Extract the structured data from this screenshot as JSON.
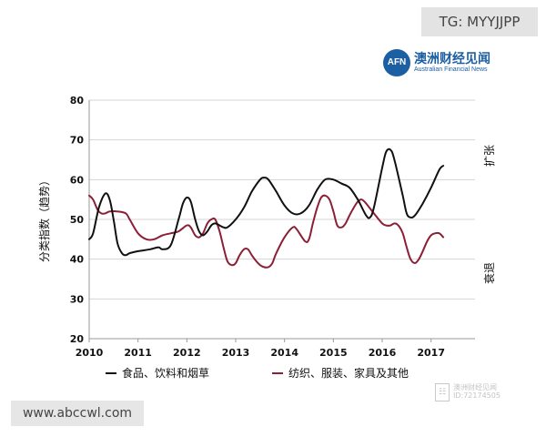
{
  "watermarks": {
    "tg_handle": "TG: MYYJJPP",
    "site_url": "www.abccwl.com",
    "corner_brand_cn": "澳洲财经见闻",
    "corner_brand_id": "ID:72174505"
  },
  "brand": {
    "logo_text": "AFN",
    "name_cn": "澳洲财经见闻",
    "name_en": "Australian Financial News",
    "color": "#1d5fa3"
  },
  "chart_data": {
    "type": "line",
    "title": "",
    "ylabel": "分类指数（趋势）",
    "xlabel": "",
    "ylim": [
      20,
      80
    ],
    "yticks": [
      20,
      30,
      40,
      50,
      60,
      70,
      80
    ],
    "xlim": [
      2010,
      2017.9
    ],
    "xticks": [
      2010,
      2011,
      2012,
      2013,
      2014,
      2015,
      2016,
      2017
    ],
    "xtick_labels": [
      "2010",
      "2011",
      "2012",
      "2013",
      "2014",
      "2015",
      "2016",
      "2017"
    ],
    "reference_line": 50,
    "annotations": {
      "upper": "扩张",
      "lower": "衰退"
    },
    "legend_position": "bottom",
    "series": [
      {
        "name": "食品、饮料和烟草",
        "color": "#111111",
        "points": [
          [
            2010.0,
            45
          ],
          [
            2010.08,
            46.5
          ],
          [
            2010.2,
            53
          ],
          [
            2010.33,
            56.5
          ],
          [
            2010.42,
            55
          ],
          [
            2010.5,
            50
          ],
          [
            2010.58,
            44
          ],
          [
            2010.67,
            41.5
          ],
          [
            2010.75,
            41
          ],
          [
            2010.83,
            41.5
          ],
          [
            2011.0,
            42
          ],
          [
            2011.25,
            42.5
          ],
          [
            2011.42,
            43
          ],
          [
            2011.5,
            42.5
          ],
          [
            2011.67,
            43.5
          ],
          [
            2011.83,
            50
          ],
          [
            2011.92,
            54
          ],
          [
            2012.0,
            55.5
          ],
          [
            2012.08,
            54.5
          ],
          [
            2012.17,
            50
          ],
          [
            2012.25,
            47
          ],
          [
            2012.33,
            46
          ],
          [
            2012.42,
            47
          ],
          [
            2012.5,
            48.5
          ],
          [
            2012.58,
            49
          ],
          [
            2012.67,
            48.5
          ],
          [
            2012.75,
            48
          ],
          [
            2012.83,
            48
          ],
          [
            2013.0,
            50
          ],
          [
            2013.17,
            53
          ],
          [
            2013.33,
            57
          ],
          [
            2013.5,
            60
          ],
          [
            2013.58,
            60.5
          ],
          [
            2013.67,
            60
          ],
          [
            2013.83,
            57
          ],
          [
            2014.0,
            53.5
          ],
          [
            2014.17,
            51.5
          ],
          [
            2014.33,
            51.5
          ],
          [
            2014.5,
            53.5
          ],
          [
            2014.67,
            57.5
          ],
          [
            2014.83,
            60
          ],
          [
            2015.0,
            60
          ],
          [
            2015.17,
            59
          ],
          [
            2015.33,
            58
          ],
          [
            2015.5,
            55
          ],
          [
            2015.67,
            51
          ],
          [
            2015.75,
            50.5
          ],
          [
            2015.83,
            53
          ],
          [
            2016.0,
            63
          ],
          [
            2016.08,
            67
          ],
          [
            2016.17,
            67.5
          ],
          [
            2016.25,
            65
          ],
          [
            2016.42,
            56
          ],
          [
            2016.5,
            51.5
          ],
          [
            2016.58,
            50.5
          ],
          [
            2016.67,
            51
          ],
          [
            2016.83,
            54
          ],
          [
            2017.0,
            58
          ],
          [
            2017.17,
            62.5
          ],
          [
            2017.25,
            63.5
          ]
        ]
      },
      {
        "name": "纺织、服装、家具及其他",
        "color": "#8b1f35",
        "points": [
          [
            2010.0,
            56
          ],
          [
            2010.08,
            55
          ],
          [
            2010.17,
            52.5
          ],
          [
            2010.25,
            51.5
          ],
          [
            2010.33,
            51.5
          ],
          [
            2010.42,
            52
          ],
          [
            2010.58,
            52
          ],
          [
            2010.75,
            51.5
          ],
          [
            2010.83,
            50
          ],
          [
            2011.0,
            46.5
          ],
          [
            2011.17,
            45
          ],
          [
            2011.33,
            45
          ],
          [
            2011.5,
            46
          ],
          [
            2011.67,
            46.5
          ],
          [
            2011.83,
            47
          ],
          [
            2012.0,
            48.5
          ],
          [
            2012.08,
            48
          ],
          [
            2012.17,
            46
          ],
          [
            2012.25,
            45.5
          ],
          [
            2012.33,
            46.5
          ],
          [
            2012.42,
            49
          ],
          [
            2012.5,
            50
          ],
          [
            2012.58,
            50
          ],
          [
            2012.67,
            47
          ],
          [
            2012.75,
            43
          ],
          [
            2012.83,
            39.5
          ],
          [
            2012.92,
            38.5
          ],
          [
            2013.0,
            39
          ],
          [
            2013.08,
            41
          ],
          [
            2013.17,
            42.5
          ],
          [
            2013.25,
            42.5
          ],
          [
            2013.33,
            41
          ],
          [
            2013.42,
            39.5
          ],
          [
            2013.5,
            38.5
          ],
          [
            2013.58,
            38
          ],
          [
            2013.67,
            38
          ],
          [
            2013.75,
            39
          ],
          [
            2013.83,
            41.5
          ],
          [
            2014.0,
            45.5
          ],
          [
            2014.17,
            48
          ],
          [
            2014.25,
            47.5
          ],
          [
            2014.42,
            44.5
          ],
          [
            2014.5,
            45
          ],
          [
            2014.58,
            49
          ],
          [
            2014.67,
            53
          ],
          [
            2014.75,
            55.5
          ],
          [
            2014.83,
            56
          ],
          [
            2014.92,
            55
          ],
          [
            2015.0,
            52
          ],
          [
            2015.08,
            48.5
          ],
          [
            2015.17,
            48
          ],
          [
            2015.25,
            49
          ],
          [
            2015.33,
            51
          ],
          [
            2015.42,
            53
          ],
          [
            2015.5,
            54.5
          ],
          [
            2015.58,
            55
          ],
          [
            2015.67,
            54
          ],
          [
            2015.83,
            51.5
          ],
          [
            2016.0,
            49
          ],
          [
            2016.08,
            48.5
          ],
          [
            2016.17,
            48.5
          ],
          [
            2016.25,
            49
          ],
          [
            2016.33,
            48.5
          ],
          [
            2016.42,
            46.5
          ],
          [
            2016.5,
            43
          ],
          [
            2016.58,
            40
          ],
          [
            2016.67,
            39
          ],
          [
            2016.75,
            40
          ],
          [
            2016.83,
            42
          ],
          [
            2016.92,
            44.5
          ],
          [
            2017.0,
            46
          ],
          [
            2017.08,
            46.5
          ],
          [
            2017.17,
            46.5
          ],
          [
            2017.25,
            45.5
          ]
        ]
      }
    ]
  }
}
